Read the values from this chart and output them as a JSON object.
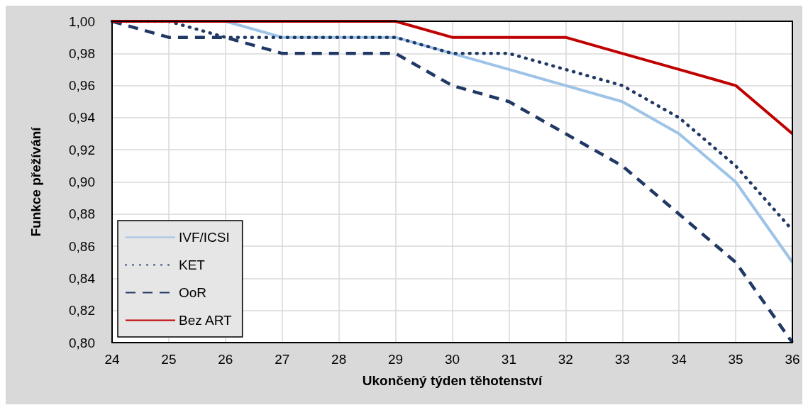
{
  "chart_data": {
    "type": "line",
    "xlabel": "Ukončený týden těhotenství",
    "ylabel": "Funkce přežívání",
    "x": [
      24,
      25,
      26,
      27,
      28,
      29,
      30,
      31,
      32,
      33,
      34,
      35,
      36
    ],
    "series": [
      {
        "name": "IVF/ICSI",
        "color": "#9dc3e6",
        "line_style": "solid",
        "values": [
          1.0,
          1.0,
          1.0,
          0.99,
          0.99,
          0.99,
          0.98,
          0.97,
          0.96,
          0.95,
          0.93,
          0.9,
          0.85
        ]
      },
      {
        "name": "KET",
        "color": "#1f3864",
        "line_style": "dotted",
        "values": [
          1.0,
          1.0,
          0.99,
          0.99,
          0.99,
          0.99,
          0.98,
          0.98,
          0.97,
          0.96,
          0.94,
          0.91,
          0.87
        ]
      },
      {
        "name": "OoR",
        "color": "#203864",
        "line_style": "dashed",
        "values": [
          1.0,
          0.99,
          0.99,
          0.98,
          0.98,
          0.98,
          0.96,
          0.95,
          0.93,
          0.91,
          0.88,
          0.85,
          0.8
        ]
      },
      {
        "name": "Bez ART",
        "color": "#c00000",
        "line_style": "solid",
        "values": [
          1.0,
          1.0,
          1.0,
          1.0,
          1.0,
          1.0,
          0.99,
          0.99,
          0.99,
          0.98,
          0.97,
          0.96,
          0.93
        ]
      }
    ],
    "xlim": [
      24,
      36
    ],
    "xticks": [
      24,
      25,
      26,
      27,
      28,
      29,
      30,
      31,
      32,
      33,
      34,
      35,
      36
    ],
    "ylim": [
      0.8,
      1.0
    ],
    "yticks": [
      {
        "value": 0.8,
        "label": "0,80"
      },
      {
        "value": 0.82,
        "label": "0,82"
      },
      {
        "value": 0.84,
        "label": "0,84"
      },
      {
        "value": 0.86,
        "label": "0,86"
      },
      {
        "value": 0.88,
        "label": "0,88"
      },
      {
        "value": 0.9,
        "label": "0,90"
      },
      {
        "value": 0.92,
        "label": "0,92"
      },
      {
        "value": 0.94,
        "label": "0,94"
      },
      {
        "value": 0.96,
        "label": "0,96"
      },
      {
        "value": 0.98,
        "label": "0,98"
      },
      {
        "value": 1.0,
        "label": "1,00"
      }
    ],
    "grid": true,
    "legend": "bottom left",
    "marker": "none"
  }
}
